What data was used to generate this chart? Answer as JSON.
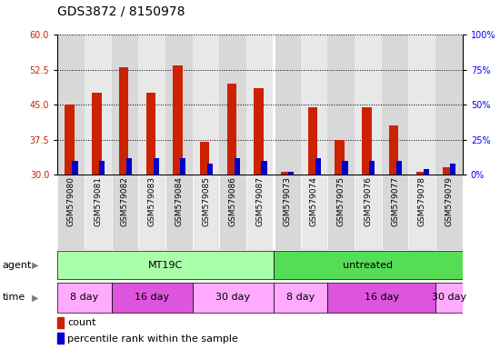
{
  "title": "GDS3872 / 8150978",
  "samples": [
    "GSM579080",
    "GSM579081",
    "GSM579082",
    "GSM579083",
    "GSM579084",
    "GSM579085",
    "GSM579086",
    "GSM579087",
    "GSM579073",
    "GSM579074",
    "GSM579075",
    "GSM579076",
    "GSM579077",
    "GSM579078",
    "GSM579079"
  ],
  "count_values": [
    45.0,
    47.5,
    53.0,
    47.5,
    53.5,
    37.0,
    49.5,
    48.5,
    30.5,
    44.5,
    37.5,
    44.5,
    40.5,
    30.5,
    31.5
  ],
  "count_base": 30,
  "pct_values_right": [
    10,
    10,
    12,
    12,
    12,
    8,
    12,
    10,
    2,
    12,
    10,
    10,
    10,
    4,
    8
  ],
  "ylim_left": [
    30,
    60
  ],
  "ylim_right": [
    0,
    100
  ],
  "yticks_left": [
    30,
    37.5,
    45,
    52.5,
    60
  ],
  "yticks_right": [
    0,
    25,
    50,
    75,
    100
  ],
  "bar_color_count": "#cc2200",
  "bar_color_pct": "#0000cc",
  "bar_width": 0.35,
  "agent_groups": [
    {
      "label": "MT19C",
      "start": 0,
      "end": 7,
      "color": "#aaffaa"
    },
    {
      "label": "untreated",
      "start": 8,
      "end": 14,
      "color": "#55dd55"
    }
  ],
  "time_groups": [
    {
      "label": "8 day",
      "start": 0,
      "end": 1,
      "color": "#ffaaff"
    },
    {
      "label": "16 day",
      "start": 2,
      "end": 4,
      "color": "#dd55dd"
    },
    {
      "label": "30 day",
      "start": 5,
      "end": 7,
      "color": "#ffaaff"
    },
    {
      "label": "8 day",
      "start": 8,
      "end": 9,
      "color": "#ffaaff"
    },
    {
      "label": "16 day",
      "start": 10,
      "end": 13,
      "color": "#dd55dd"
    },
    {
      "label": "30 day",
      "start": 14,
      "end": 14,
      "color": "#ffaaff"
    }
  ],
  "col_bg_even": "#d8d8d8",
  "col_bg_odd": "#e8e8e8",
  "grid_color": "black",
  "title_fontsize": 10,
  "tick_fontsize": 7,
  "sample_label_fontsize": 6.5
}
